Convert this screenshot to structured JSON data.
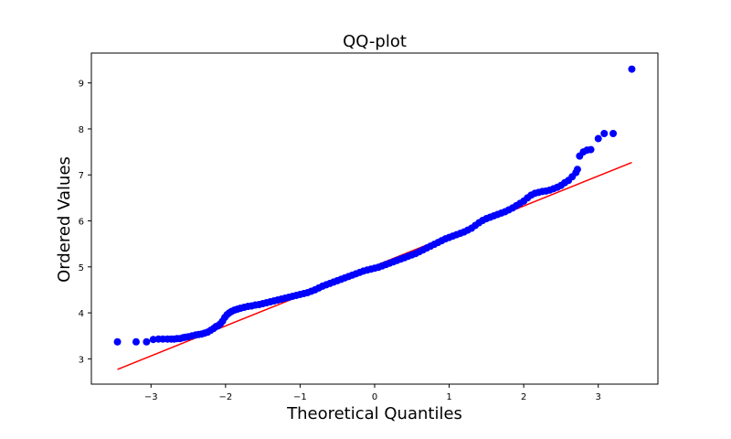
{
  "chart_data": {
    "type": "scatter",
    "title": "QQ-plot",
    "xlabel": "Theoretical Quantiles",
    "ylabel": "Ordered Values",
    "xlim": [
      -3.8,
      3.8
    ],
    "ylim": [
      2.45,
      9.65
    ],
    "xticks": [
      -3,
      -2,
      -1,
      0,
      1,
      2,
      3
    ],
    "xtick_labels": [
      "−3",
      "−2",
      "−1",
      "0",
      "1",
      "2",
      "3"
    ],
    "yticks": [
      3,
      4,
      5,
      6,
      7,
      8,
      9
    ],
    "ytick_labels": [
      "3",
      "4",
      "5",
      "6",
      "7",
      "8",
      "9"
    ],
    "grid": false,
    "legend": "none",
    "colors": {
      "points": "#0000ff",
      "fit_line": "#ff0000",
      "axes": "#000000"
    },
    "series": [
      {
        "kind": "points",
        "x": [
          -3.45,
          -3.2,
          -3.06,
          -2.97,
          -2.9,
          -2.84,
          -2.78,
          -2.73,
          -2.69,
          -2.65,
          -2.61,
          -2.57,
          -2.54,
          -2.5,
          -2.45,
          -2.4,
          -2.36,
          -2.32,
          -2.28,
          -2.24,
          -2.2,
          -2.16,
          -2.13,
          -2.1,
          -2.07,
          -2.04,
          -2.01,
          -1.98,
          -1.95,
          -1.92,
          -1.88,
          -1.84,
          -1.8,
          -1.75,
          -1.7,
          -1.65,
          -1.6,
          -1.55,
          -1.5,
          -1.45,
          -1.4,
          -1.35,
          -1.3,
          -1.25,
          -1.2,
          -1.15,
          -1.1,
          -1.05,
          -1.0,
          -0.95,
          -0.9,
          -0.85,
          -0.8,
          -0.75,
          -0.7,
          -0.65,
          -0.6,
          -0.55,
          -0.5,
          -0.45,
          -0.4,
          -0.35,
          -0.3,
          -0.25,
          -0.2,
          -0.15,
          -0.1,
          -0.05,
          0.0,
          0.05,
          0.1,
          0.15,
          0.2,
          0.25,
          0.3,
          0.35,
          0.4,
          0.45,
          0.5,
          0.55,
          0.6,
          0.65,
          0.7,
          0.75,
          0.8,
          0.85,
          0.9,
          0.95,
          1.0,
          1.05,
          1.1,
          1.15,
          1.2,
          1.25,
          1.3,
          1.35,
          1.4,
          1.45,
          1.5,
          1.55,
          1.6,
          1.65,
          1.7,
          1.75,
          1.8,
          1.85,
          1.9,
          1.95,
          2.0,
          2.05,
          2.1,
          2.15,
          2.2,
          2.25,
          2.3,
          2.35,
          2.4,
          2.45,
          2.5,
          2.55,
          2.6,
          2.65,
          2.7,
          2.72,
          2.75,
          2.8,
          2.85,
          2.9,
          3.0,
          3.08,
          3.2,
          3.45
        ],
        "y": [
          3.37,
          3.37,
          3.37,
          3.42,
          3.43,
          3.43,
          3.43,
          3.43,
          3.43,
          3.44,
          3.44,
          3.46,
          3.47,
          3.48,
          3.5,
          3.52,
          3.53,
          3.54,
          3.56,
          3.58,
          3.62,
          3.66,
          3.7,
          3.72,
          3.76,
          3.82,
          3.9,
          3.96,
          4.0,
          4.03,
          4.06,
          4.08,
          4.1,
          4.12,
          4.14,
          4.15,
          4.17,
          4.18,
          4.2,
          4.22,
          4.24,
          4.26,
          4.28,
          4.3,
          4.32,
          4.34,
          4.36,
          4.38,
          4.4,
          4.42,
          4.44,
          4.47,
          4.5,
          4.54,
          4.58,
          4.61,
          4.64,
          4.67,
          4.7,
          4.73,
          4.76,
          4.79,
          4.82,
          4.85,
          4.88,
          4.91,
          4.93,
          4.95,
          4.97,
          4.99,
          5.02,
          5.05,
          5.08,
          5.11,
          5.14,
          5.17,
          5.2,
          5.23,
          5.26,
          5.29,
          5.33,
          5.37,
          5.41,
          5.45,
          5.49,
          5.53,
          5.57,
          5.61,
          5.64,
          5.67,
          5.7,
          5.73,
          5.76,
          5.8,
          5.84,
          5.9,
          5.96,
          6.01,
          6.05,
          6.08,
          6.11,
          6.14,
          6.17,
          6.2,
          6.24,
          6.28,
          6.33,
          6.38,
          6.43,
          6.5,
          6.56,
          6.6,
          6.62,
          6.64,
          6.65,
          6.67,
          6.7,
          6.73,
          6.77,
          6.83,
          6.88,
          6.96,
          7.05,
          7.12,
          7.41,
          7.5,
          7.54,
          7.55,
          7.79,
          7.9,
          7.9,
          9.3
        ]
      },
      {
        "kind": "fit_line",
        "x": [
          -3.45,
          3.45
        ],
        "y": [
          2.77,
          7.27
        ]
      }
    ]
  }
}
